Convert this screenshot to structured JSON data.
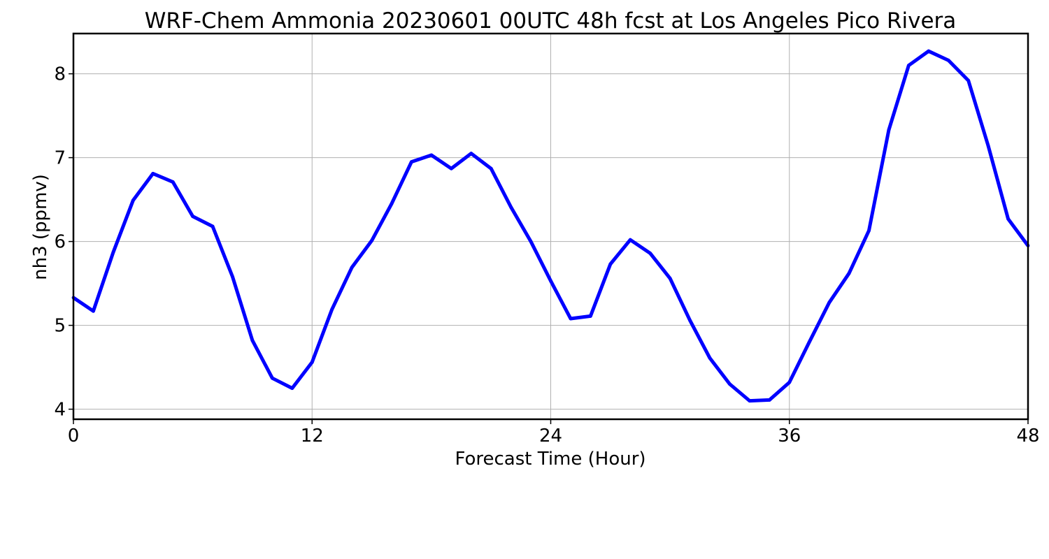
{
  "chart_data": {
    "type": "line",
    "title": "WRF-Chem Ammonia  20230601 00UTC 48h fcst at Los Angeles Pico Rivera",
    "xlabel": "Forecast Time (Hour)",
    "ylabel": "nh3  (ppmv)",
    "xlim": [
      0,
      48
    ],
    "ylim": [
      3.88,
      8.48
    ],
    "xticks": [
      0,
      12,
      24,
      36,
      48
    ],
    "yticks": [
      4,
      5,
      6,
      7,
      8
    ],
    "grid": true,
    "series": [
      {
        "color": "#0000ff",
        "x": [
          0,
          1,
          2,
          3,
          4,
          5,
          6,
          7,
          8,
          9,
          10,
          11,
          12,
          13,
          14,
          15,
          16,
          17,
          18,
          19,
          20,
          21,
          22,
          23,
          24,
          25,
          26,
          27,
          28,
          29,
          30,
          31,
          32,
          33,
          34,
          35,
          36,
          37,
          38,
          39,
          40,
          41,
          42,
          43,
          44,
          45,
          46,
          47,
          48
        ],
        "y": [
          5.33,
          5.17,
          5.87,
          6.49,
          6.81,
          6.71,
          6.3,
          6.18,
          5.58,
          4.82,
          4.37,
          4.25,
          4.56,
          5.19,
          5.69,
          6.01,
          6.45,
          6.95,
          7.03,
          6.87,
          7.05,
          6.87,
          6.41,
          6.0,
          5.53,
          5.08,
          5.11,
          5.73,
          6.02,
          5.86,
          5.56,
          5.06,
          4.61,
          4.3,
          4.1,
          4.11,
          4.32,
          4.8,
          5.27,
          5.62,
          6.13,
          7.33,
          8.1,
          8.27,
          8.16,
          7.92,
          7.14,
          6.27,
          5.95
        ]
      }
    ]
  }
}
